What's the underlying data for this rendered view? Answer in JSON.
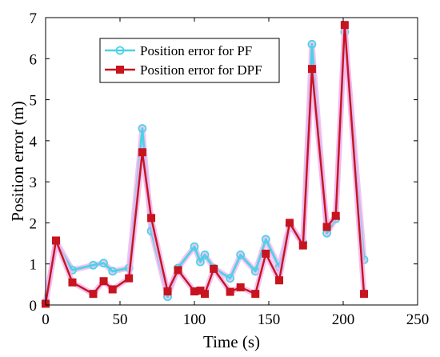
{
  "chart_data": {
    "type": "line",
    "xlabel": "Time (s)",
    "ylabel": "Position error (m)",
    "xlim": [
      0,
      250
    ],
    "ylim": [
      0,
      7
    ],
    "xticks": [
      0,
      50,
      100,
      150,
      200,
      250
    ],
    "yticks": [
      0,
      1,
      2,
      3,
      4,
      5,
      6,
      7
    ],
    "grid": false,
    "legend_position": "top-left",
    "series": [
      {
        "name": "Position error for PF",
        "color": "#4dd2e6",
        "halo": "#f0b4f0",
        "marker": "circle",
        "points": [
          [
            0,
            0.05
          ],
          [
            7,
            1.55
          ],
          [
            18,
            0.85
          ],
          [
            32,
            0.97
          ],
          [
            39,
            1.02
          ],
          [
            45,
            0.82
          ],
          [
            56,
            0.9
          ],
          [
            65,
            4.3
          ],
          [
            71,
            1.8
          ],
          [
            82,
            0.2
          ],
          [
            89,
            0.9
          ],
          [
            100,
            1.42
          ],
          [
            104,
            1.05
          ],
          [
            107,
            1.22
          ],
          [
            113,
            0.9
          ],
          [
            124,
            0.65
          ],
          [
            131,
            1.22
          ],
          [
            141,
            0.82
          ],
          [
            148,
            1.6
          ],
          [
            157,
            0.92
          ],
          [
            164,
            1.95
          ],
          [
            173,
            1.52
          ],
          [
            179,
            6.35
          ],
          [
            189,
            1.75
          ],
          [
            195,
            2.1
          ],
          [
            201,
            6.65
          ],
          [
            214,
            1.1
          ]
        ]
      },
      {
        "name": "Position error for DPF",
        "color": "#c8141e",
        "halo": "#f0b4f0",
        "marker": "square",
        "points": [
          [
            0,
            0.03
          ],
          [
            7,
            1.57
          ],
          [
            18,
            0.55
          ],
          [
            32,
            0.27
          ],
          [
            39,
            0.58
          ],
          [
            45,
            0.38
          ],
          [
            56,
            0.65
          ],
          [
            65,
            3.72
          ],
          [
            71,
            2.12
          ],
          [
            82,
            0.33
          ],
          [
            89,
            0.85
          ],
          [
            100,
            0.33
          ],
          [
            104,
            0.35
          ],
          [
            107,
            0.27
          ],
          [
            113,
            0.88
          ],
          [
            124,
            0.32
          ],
          [
            131,
            0.43
          ],
          [
            141,
            0.27
          ],
          [
            148,
            1.25
          ],
          [
            157,
            0.6
          ],
          [
            164,
            2.0
          ],
          [
            173,
            1.45
          ],
          [
            179,
            5.75
          ],
          [
            189,
            1.9
          ],
          [
            195,
            2.17
          ],
          [
            201,
            6.82
          ],
          [
            214,
            0.27
          ]
        ]
      }
    ]
  }
}
